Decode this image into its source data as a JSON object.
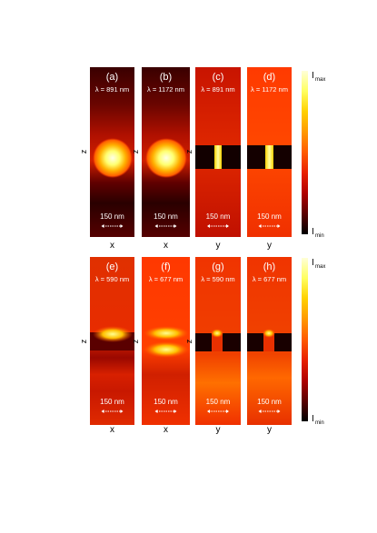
{
  "rows": [
    {
      "panels": [
        {
          "letter": "(a)",
          "lambda": "λ = 891 nm",
          "scale": "150 nm",
          "axis": "x",
          "side": "z"
        },
        {
          "letter": "(b)",
          "lambda": "λ = 1172 nm",
          "scale": "150 nm",
          "axis": "x",
          "side": "z"
        },
        {
          "letter": "(c)",
          "lambda": "λ = 891 nm",
          "scale": "150 nm",
          "axis": "y",
          "side": "z"
        },
        {
          "letter": "(d)",
          "lambda": "λ = 1172 nm",
          "scale": "150 nm",
          "axis": "y",
          "side": ""
        }
      ],
      "colorbar": {
        "max_label": "I",
        "max_sub": "max",
        "min_label": "I",
        "min_sub": "min"
      }
    },
    {
      "panels": [
        {
          "letter": "(e)",
          "lambda": "λ = 590 nm",
          "scale": "150 nm",
          "axis": "x",
          "side": "z"
        },
        {
          "letter": "(f)",
          "lambda": "λ = 677 nm",
          "scale": "150 nm",
          "axis": "x",
          "side": "z"
        },
        {
          "letter": "(g)",
          "lambda": "λ = 590 nm",
          "scale": "150 nm",
          "axis": "y",
          "side": "z"
        },
        {
          "letter": "(h)",
          "lambda": "λ = 677 nm",
          "scale": "150 nm",
          "axis": "y",
          "side": ""
        }
      ],
      "colorbar": {
        "max_label": "I",
        "max_sub": "max",
        "min_label": "I",
        "min_sub": "min"
      }
    }
  ],
  "colormap": [
    "#000000",
    "#5a0000",
    "#b00000",
    "#e82000",
    "#ff5a00",
    "#ff9800",
    "#ffd000",
    "#ffff60",
    "#ffffd8"
  ]
}
